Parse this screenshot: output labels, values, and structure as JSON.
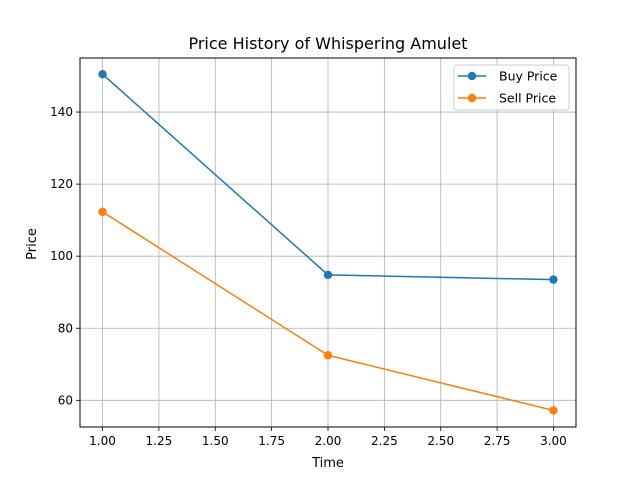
{
  "chart_data": {
    "type": "line",
    "title": "Price History of Whispering Amulet",
    "xlabel": "Time",
    "ylabel": "Price",
    "x": [
      1.0,
      2.0,
      3.0
    ],
    "xlim": [
      0.9,
      3.1
    ],
    "ylim": [
      52.6,
      155.0
    ],
    "xticks": [
      1.0,
      1.25,
      1.5,
      1.75,
      2.0,
      2.25,
      2.5,
      2.75,
      3.0
    ],
    "xtick_labels": [
      "1.00",
      "1.25",
      "1.50",
      "1.75",
      "2.00",
      "2.25",
      "2.50",
      "2.75",
      "3.00"
    ],
    "yticks": [
      60,
      80,
      100,
      120,
      140
    ],
    "ytick_labels": [
      "60",
      "80",
      "100",
      "120",
      "140"
    ],
    "grid": true,
    "legend_position": "top-right",
    "series": [
      {
        "name": "Buy Price",
        "values": [
          150.5,
          94.8,
          93.5
        ],
        "color": "#1f77b4"
      },
      {
        "name": "Sell Price",
        "values": [
          112.3,
          72.5,
          57.2
        ],
        "color": "#ff7f0e"
      }
    ]
  }
}
